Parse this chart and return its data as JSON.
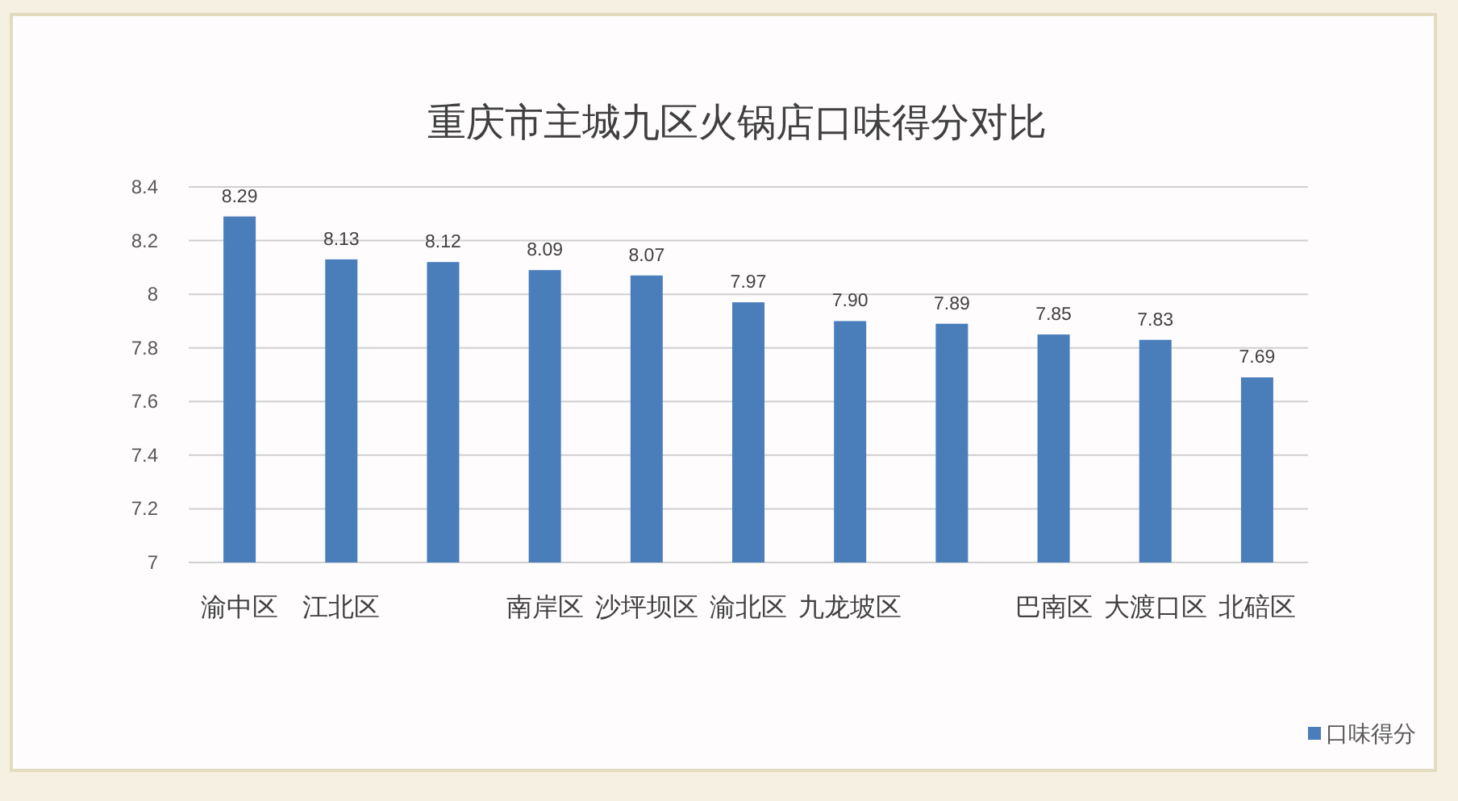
{
  "chart_data": {
    "type": "bar",
    "title": "重庆市主城九区火锅店口味得分对比",
    "categories": [
      "渝中区",
      "江北区",
      null,
      "南岸区",
      "沙坪坝区",
      "渝北区",
      "九龙坡区",
      null,
      "巴南区",
      "大渡口区",
      "北碚区"
    ],
    "series": [
      {
        "name": "口味得分",
        "color": "#4a7ebb",
        "values": [
          8.29,
          8.13,
          8.12,
          8.09,
          8.07,
          7.97,
          7.9,
          7.89,
          7.85,
          7.83,
          7.69
        ],
        "value_labels": [
          "8.29",
          "8.13",
          "8.12",
          "8.09",
          "8.07",
          "7.97",
          "7.90",
          "7.89",
          "7.85",
          "7.83",
          "7.69"
        ]
      }
    ],
    "ylim": [
      7,
      8.4
    ],
    "yticks": [
      7,
      7.2,
      7.4,
      7.6,
      7.8,
      8,
      8.2,
      8.4
    ],
    "grid": "y",
    "legend": "bottom right"
  }
}
